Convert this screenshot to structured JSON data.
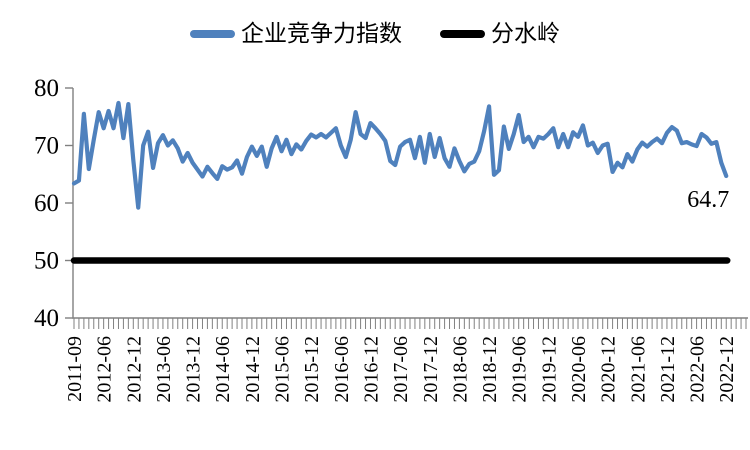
{
  "legend": {
    "items": [
      {
        "label": "企业竞争力指数",
        "color": "#4F81BD"
      },
      {
        "label": "分水岭",
        "color": "#000000"
      }
    ]
  },
  "annotation": {
    "last_value_label": "64.7"
  },
  "axis_color": "#808080",
  "chart_data": {
    "type": "line",
    "title": "",
    "xlabel": "",
    "ylabel": "",
    "ylim": [
      40,
      80
    ],
    "yticks": [
      40,
      50,
      60,
      70,
      80
    ],
    "grid": false,
    "legend_position": "top",
    "categories": [
      "2011-09",
      "2012-06",
      "2012-12",
      "2013-06",
      "2013-12",
      "2014-06",
      "2014-12",
      "2015-06",
      "2015-12",
      "2016-06",
      "2016-12",
      "2017-06",
      "2017-12",
      "2018-06",
      "2018-12",
      "2019-06",
      "2019-12",
      "2020-06",
      "2020-12",
      "2021-06",
      "2021-12",
      "2022-06",
      "2022-12"
    ],
    "label_every": 6,
    "axis_extra_ticks": 4,
    "series": [
      {
        "name": "企业竞争力指数",
        "color": "#4F81BD",
        "values": [
          63.4,
          63.9,
          75.5,
          65.9,
          71.0,
          75.8,
          73.0,
          76.0,
          73.0,
          77.4,
          71.3,
          77.2,
          67.5,
          59.2,
          70.0,
          72.4,
          66.1,
          70.4,
          71.8,
          70.0,
          70.9,
          69.5,
          67.2,
          68.7,
          67.0,
          65.8,
          64.6,
          66.3,
          65.2,
          64.2,
          66.4,
          65.8,
          66.2,
          67.4,
          65.1,
          68.0,
          69.8,
          68.2,
          69.8,
          66.3,
          69.5,
          71.5,
          69.0,
          71.0,
          68.5,
          70.2,
          69.3,
          70.8,
          71.9,
          71.4,
          72.0,
          71.4,
          72.2,
          73.0,
          70.0,
          68.0,
          71.0,
          75.8,
          72.0,
          71.3,
          73.9,
          73.0,
          72.0,
          70.8,
          67.3,
          66.6,
          69.8,
          70.6,
          71.0,
          67.8,
          71.5,
          67.0,
          72.0,
          68.0,
          71.3,
          67.8,
          66.3,
          69.5,
          67.3,
          65.5,
          66.8,
          67.2,
          69.0,
          72.5,
          76.8,
          64.9,
          65.7,
          73.3,
          69.4,
          72.0,
          75.3,
          70.6,
          71.5,
          69.7,
          71.5,
          71.2,
          72.0,
          73.0,
          69.7,
          72.0,
          69.7,
          72.3,
          71.5,
          73.5,
          70.0,
          70.5,
          68.7,
          70.0,
          70.3,
          65.4,
          67.0,
          66.2,
          68.5,
          67.2,
          69.3,
          70.5,
          69.8,
          70.6,
          71.2,
          70.4,
          72.2,
          73.2,
          72.6,
          70.4,
          70.6,
          70.2,
          69.9,
          72.0,
          71.4,
          70.3,
          70.6,
          67.0,
          64.7
        ]
      },
      {
        "name": "分水岭",
        "color": "#000000",
        "constant": 50
      }
    ]
  }
}
